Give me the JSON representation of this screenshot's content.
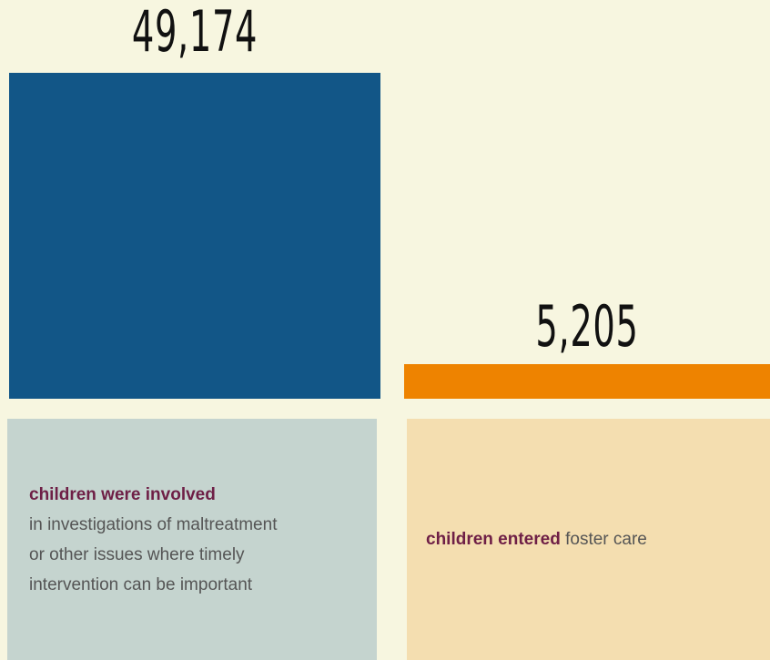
{
  "colors": {
    "background": "#f7f6e0",
    "bar_involved": "#125687",
    "bar_entered": "#ee8300",
    "card_involved_bg": "#c5d4cf",
    "card_entered_bg": "#f4deb0",
    "highlight_text": "#6e1f46"
  },
  "chart_data": {
    "type": "bar",
    "categories": [
      "children were involved",
      "children entered"
    ],
    "values": [
      49174,
      5205
    ],
    "value_labels": [
      "49,174",
      "5,205"
    ]
  },
  "cards": {
    "involved": {
      "bold": "children were involved",
      "line1": "in investigations of maltreatment",
      "line2": "or other issues where timely",
      "line3": "intervention can be important"
    },
    "entered": {
      "bold": "children entered",
      "rest": " foster care"
    }
  }
}
